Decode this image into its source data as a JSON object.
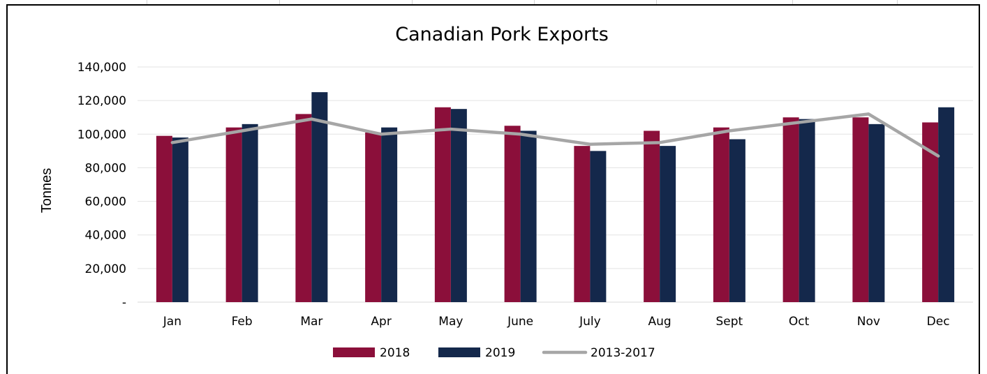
{
  "chart_data": {
    "type": "bar",
    "title": "Canadian Pork Exports",
    "xlabel": "",
    "ylabel": "Tonnes",
    "ylim": [
      0,
      140000
    ],
    "yticks": [
      0,
      20000,
      40000,
      60000,
      80000,
      100000,
      120000,
      140000
    ],
    "ytick_labels": [
      "-",
      "20,000",
      "40,000",
      "60,000",
      "80,000",
      "100,000",
      "120,000",
      "140,000"
    ],
    "categories": [
      "Jan",
      "Feb",
      "Mar",
      "Apr",
      "May",
      "June",
      "July",
      "Aug",
      "Sept",
      "Oct",
      "Nov",
      "Dec"
    ],
    "series": [
      {
        "name": "2018",
        "type": "bar",
        "color": "#8b0f3a",
        "values": [
          99000,
          104000,
          112000,
          101000,
          116000,
          105000,
          93000,
          102000,
          104000,
          110000,
          110000,
          107000
        ]
      },
      {
        "name": "2019",
        "type": "bar",
        "color": "#14284b",
        "values": [
          98000,
          106000,
          125000,
          104000,
          115000,
          102000,
          90000,
          93000,
          97000,
          109000,
          106000,
          116000
        ]
      },
      {
        "name": "2013-2017",
        "type": "line",
        "color": "#a6a6a6",
        "values": [
          95000,
          102000,
          109000,
          100000,
          103000,
          100000,
          94000,
          95000,
          102000,
          107000,
          112000,
          87000
        ]
      }
    ],
    "grid": true,
    "legend_position": "bottom"
  }
}
